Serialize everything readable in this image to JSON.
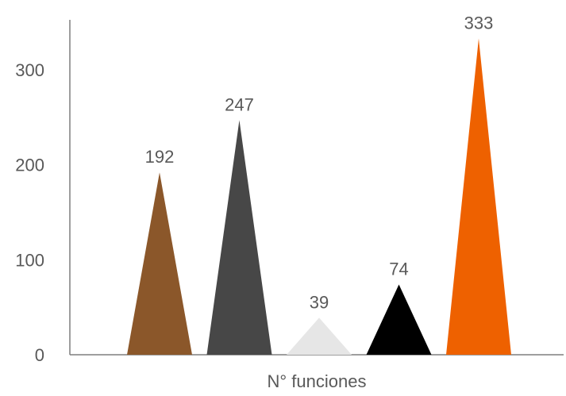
{
  "chart_data": {
    "type": "bar",
    "shape": "triangle",
    "categories": [
      ""
    ],
    "x_category_label": "N° funciones",
    "series": [
      {
        "value": 192,
        "label": "192",
        "color": "#8B572A"
      },
      {
        "value": 247,
        "label": "247",
        "color": "#474747"
      },
      {
        "value": 39,
        "label": "39",
        "color": "#E6E6E6"
      },
      {
        "value": 74,
        "label": "74",
        "color": "#000000"
      },
      {
        "value": 333,
        "label": "333",
        "color": "#EE6100"
      }
    ],
    "ylim": [
      0,
      345
    ],
    "yticks": [
      {
        "value": 0,
        "label": "0"
      },
      {
        "value": 100,
        "label": "100"
      },
      {
        "value": 200,
        "label": "200"
      },
      {
        "value": 300,
        "label": "300"
      }
    ],
    "grid": false,
    "legend": "none",
    "axis_color": "#7F7F7F",
    "text_color": "#595959"
  }
}
